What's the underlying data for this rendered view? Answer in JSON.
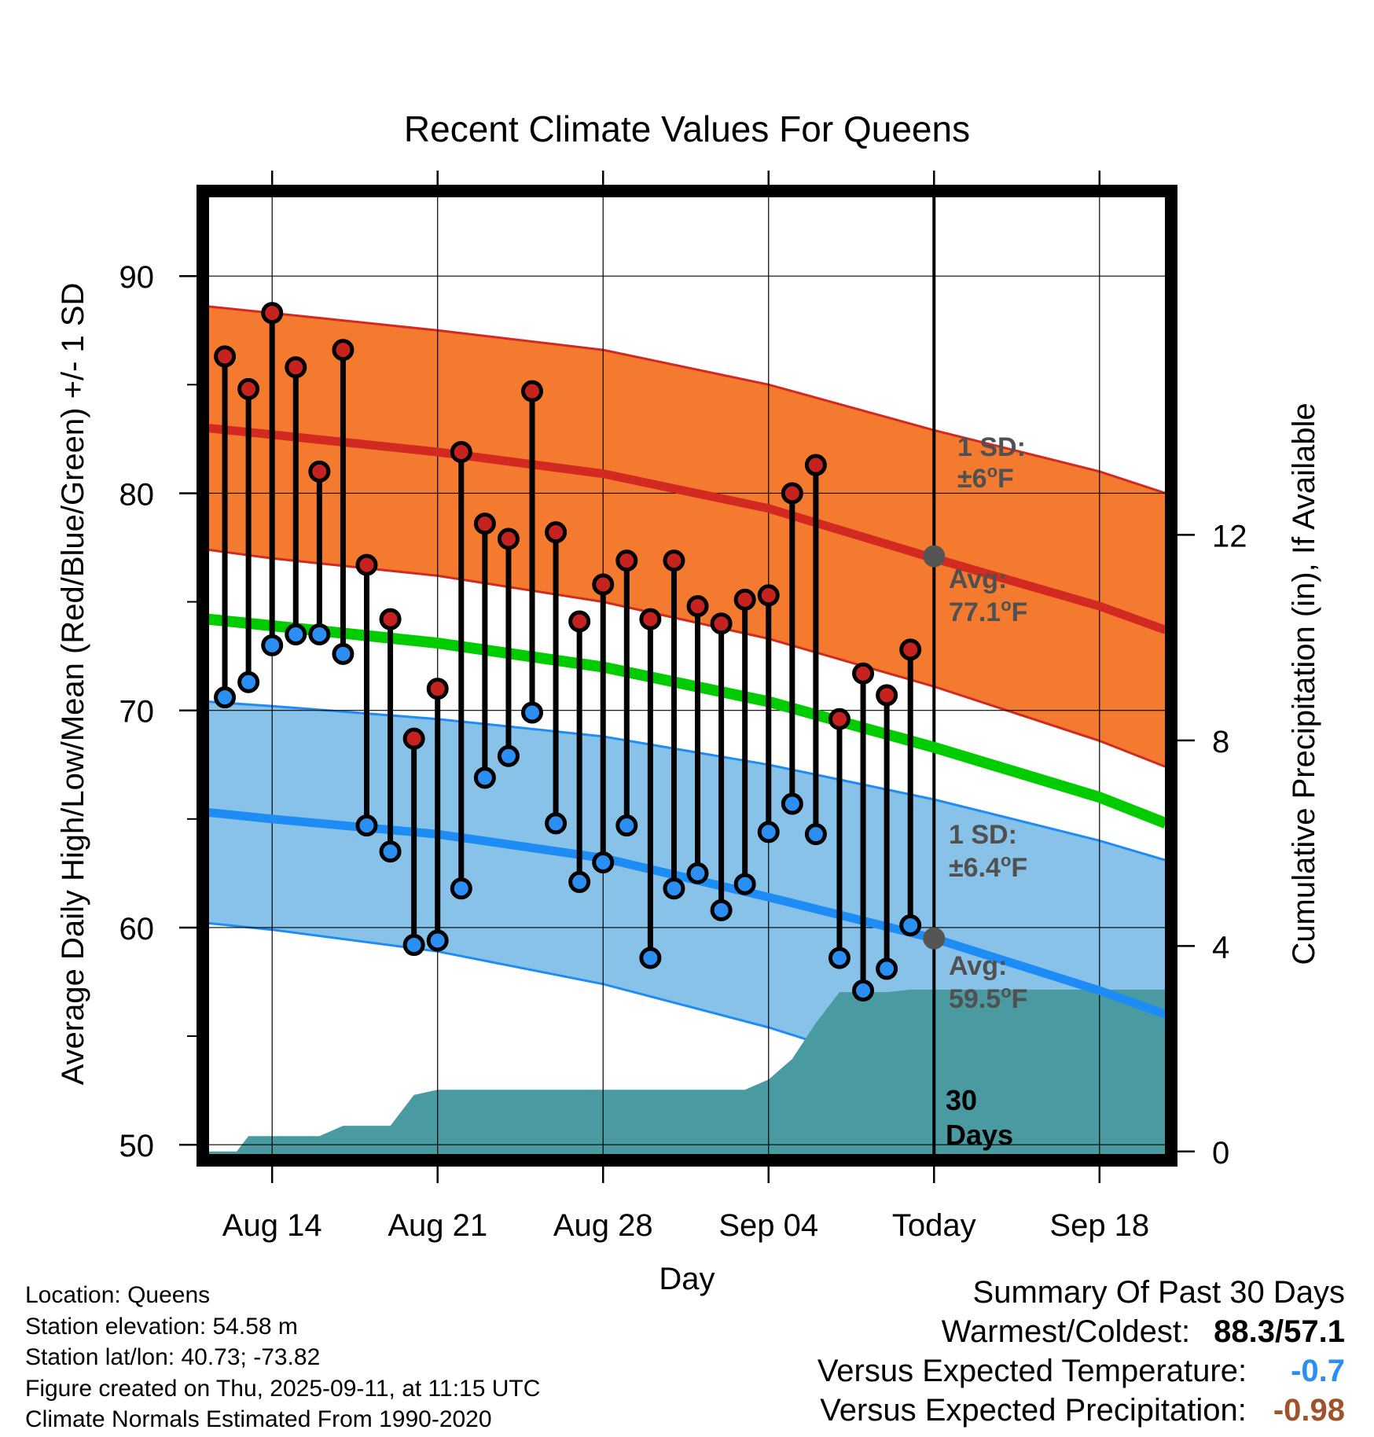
{
  "chart_data": {
    "type": "line",
    "title": "Recent Climate Values For Queens",
    "xlabel": "Day",
    "ylabel": "Average Daily High/Low/Mean (Red/Blue/Green) +/- 1 SD",
    "y2label": "Cumulative Precipitation (in), If Available",
    "ylim": [
      49.5,
      93.7
    ],
    "y2lim": [
      -0.08,
      18.6
    ],
    "y_ticks": [
      "50",
      "60",
      "70",
      "80",
      "90"
    ],
    "y2_ticks": [
      "0",
      "4",
      "8",
      "12"
    ],
    "x_tick_labels": [
      "Aug 14",
      "Aug 21",
      "Aug 28",
      "Sep 04",
      "Today",
      "Sep 18"
    ],
    "x_tick_positions": [
      14,
      21,
      28,
      35,
      42,
      49
    ],
    "xlim": [
      11.3,
      51.8
    ],
    "today": 42,
    "normals": {
      "x": [
        11.3,
        14,
        21,
        28,
        35,
        42,
        49,
        51.8
      ],
      "high_mean": [
        83.0,
        82.7,
        81.9,
        80.9,
        79.3,
        77.0,
        74.8,
        73.7
      ],
      "high_upper": [
        88.6,
        88.3,
        87.5,
        86.6,
        85.0,
        82.9,
        81.0,
        80.0
      ],
      "high_lower": [
        77.4,
        77.0,
        76.2,
        75.0,
        73.3,
        71.1,
        68.6,
        67.4
      ],
      "low_mean": [
        65.3,
        65.0,
        64.3,
        63.2,
        61.4,
        59.5,
        57.1,
        56.0
      ],
      "low_upper": [
        70.4,
        70.2,
        69.6,
        68.8,
        67.5,
        65.9,
        64.0,
        63.1
      ],
      "low_lower": [
        60.2,
        59.9,
        58.9,
        57.4,
        55.4,
        53.0,
        50.1,
        48.9
      ],
      "overall_mean": [
        74.2,
        73.9,
        73.1,
        72.0,
        70.4,
        68.3,
        66.0,
        64.8
      ]
    },
    "observed": {
      "x": [
        12,
        13,
        14,
        15,
        16,
        17,
        18,
        19,
        20,
        21,
        22,
        23,
        24,
        25,
        26,
        27,
        28,
        29,
        30,
        31,
        32,
        33,
        34,
        35,
        36,
        37,
        38,
        39,
        40,
        41
      ],
      "high": [
        86.3,
        84.8,
        88.3,
        85.8,
        81.0,
        86.6,
        76.7,
        74.2,
        68.7,
        71.0,
        81.9,
        78.6,
        77.9,
        84.7,
        78.2,
        74.1,
        75.8,
        76.9,
        74.2,
        76.9,
        74.8,
        74.0,
        75.1,
        75.3,
        80.0,
        81.3,
        69.6,
        71.7,
        70.7,
        72.8
      ],
      "low": [
        70.6,
        71.3,
        73.0,
        73.5,
        73.5,
        72.6,
        64.7,
        63.5,
        59.2,
        59.4,
        61.8,
        66.9,
        67.9,
        69.9,
        64.8,
        62.1,
        63.0,
        64.7,
        58.6,
        61.8,
        62.5,
        60.8,
        62.0,
        64.4,
        65.7,
        64.3,
        58.6,
        57.1,
        58.1,
        60.1
      ]
    },
    "precipitation": {
      "x": [
        11.3,
        12.5,
        13,
        14,
        15,
        16,
        17,
        18,
        19,
        20,
        21,
        22,
        23,
        24,
        25,
        26,
        27,
        28,
        29,
        30,
        31,
        32,
        33,
        34,
        35,
        36,
        37,
        38,
        39,
        40,
        41,
        42,
        51.8
      ],
      "cumulative": [
        0,
        0,
        0.3,
        0.3,
        0.3,
        0.3,
        0.5,
        0.5,
        0.5,
        1.1,
        1.2,
        1.2,
        1.2,
        1.2,
        1.2,
        1.2,
        1.2,
        1.2,
        1.2,
        1.2,
        1.2,
        1.2,
        1.2,
        1.2,
        1.4,
        1.8,
        2.5,
        3.1,
        3.1,
        3.1,
        3.15,
        3.15,
        3.15
      ]
    },
    "annotations": {
      "high_sd_label": "1 SD:",
      "high_sd_value": "±6",
      "high_avg_label": "Avg:",
      "high_avg_value": "77.1",
      "low_sd_label": "1 SD:",
      "low_sd_value": "±6.4",
      "low_avg_label": "Avg:",
      "low_avg_value": "59.5",
      "degree_unit": "F",
      "degree_symbol": "o",
      "days_number": "30",
      "days_word": "Days"
    },
    "colors": {
      "high_band": "#f47a30",
      "high_line": "#d22a20",
      "low_band": "#88c2e8",
      "low_line": "#1e8cf5",
      "mean_line": "#00cc00",
      "precip": "#4a9aa2",
      "high_dot": "#c62320",
      "low_dot": "#2b8ef3",
      "avg_dot": "#555555"
    }
  },
  "footer": {
    "location": "Location: Queens",
    "elevation": "Station elevation: 54.58 m",
    "latlon": "Station lat/lon: 40.73; -73.82",
    "created": "Figure created on Thu, 2025-09-11, at 11:15 UTC",
    "normals": "Climate Normals Estimated From 1990-2020"
  },
  "summary": {
    "heading": "Summary Of Past 30 Days",
    "warmest_label": "Warmest/Coldest:",
    "warmest_value": "88.3",
    "coldest_value": "57.1",
    "value_separator": "/",
    "temp_label": "Versus Expected Temperature:",
    "temp_value": "-0.7",
    "temp_color": "#2b8ef3",
    "precip_label": "Versus Expected Precipitation:",
    "precip_value": "-0.98",
    "precip_color": "#a0522d"
  }
}
